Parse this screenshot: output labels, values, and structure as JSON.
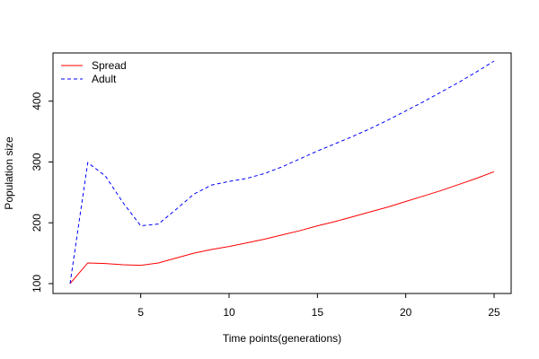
{
  "chart_data": {
    "type": "line",
    "title": "",
    "xlabel": "Time points(generations)",
    "ylabel": "Population size",
    "xlim": [
      1,
      25
    ],
    "ylim": [
      100,
      466
    ],
    "x_ticks": [
      5,
      10,
      15,
      20,
      25
    ],
    "y_ticks": [
      100,
      200,
      300,
      400
    ],
    "grid": false,
    "legend_position": "top-left",
    "x": [
      1,
      2,
      3,
      4,
      5,
      6,
      7,
      8,
      9,
      10,
      11,
      12,
      13,
      14,
      15,
      16,
      17,
      18,
      19,
      20,
      21,
      22,
      23,
      24,
      25
    ],
    "series": [
      {
        "name": "Spread",
        "color": "#ff0000",
        "line_style": "solid",
        "values": [
          100,
          134,
          133,
          131,
          130,
          134,
          142,
          150,
          156,
          161,
          167,
          173,
          180,
          187,
          195,
          202,
          210,
          218,
          226,
          235,
          244,
          253,
          263,
          273,
          284
        ]
      },
      {
        "name": "Adult",
        "color": "#0000ff",
        "line_style": "dashed",
        "values": [
          100,
          299,
          277,
          233,
          195,
          198,
          222,
          247,
          262,
          268,
          273,
          281,
          292,
          305,
          318,
          330,
          342,
          355,
          369,
          384,
          399,
          415,
          431,
          448,
          466
        ]
      }
    ]
  }
}
